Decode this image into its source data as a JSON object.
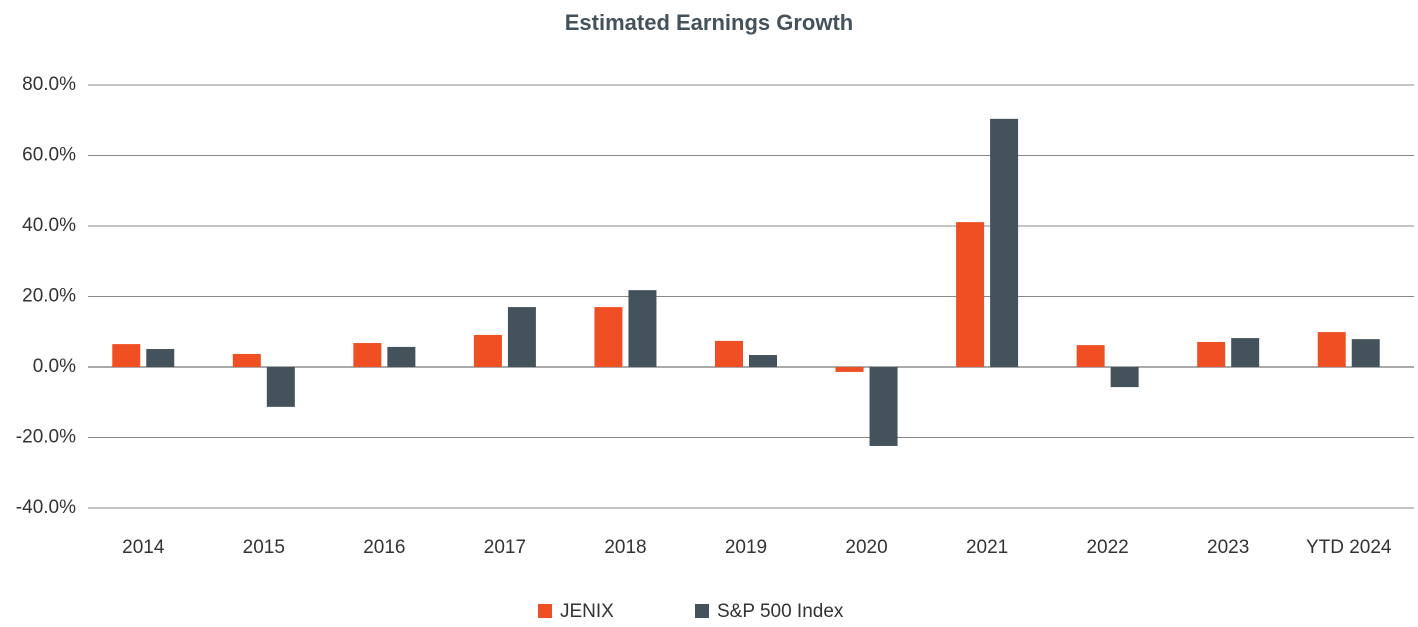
{
  "chart_data": {
    "type": "bar",
    "title": "Estimated Earnings Growth",
    "categories": [
      "2014",
      "2015",
      "2016",
      "2017",
      "2018",
      "2019",
      "2020",
      "2021",
      "2022",
      "2023",
      "YTD 2024"
    ],
    "series": [
      {
        "name": "JENIX",
        "color": "#f04e23",
        "values": [
          6.5,
          3.7,
          6.8,
          9.1,
          17.0,
          7.4,
          -1.4,
          41.1,
          6.2,
          7.1,
          9.9
        ]
      },
      {
        "name": "S&P 500 Index",
        "color": "#44525c",
        "values": [
          5.1,
          -11.3,
          5.7,
          17.0,
          21.8,
          3.4,
          -22.4,
          70.4,
          -5.7,
          8.2,
          7.9
        ]
      }
    ],
    "ylim": [
      -40,
      80
    ],
    "yticks": [
      {
        "value": -40,
        "label": "-40.0%"
      },
      {
        "value": -20,
        "label": "-20.0%"
      },
      {
        "value": 0,
        "label": "0.0%"
      },
      {
        "value": 20,
        "label": "20.0%"
      },
      {
        "value": 40,
        "label": "40.0%"
      },
      {
        "value": 60,
        "label": "60.0%"
      },
      {
        "value": 80,
        "label": "80.0%"
      }
    ],
    "grid": true,
    "legend": "bottom"
  }
}
